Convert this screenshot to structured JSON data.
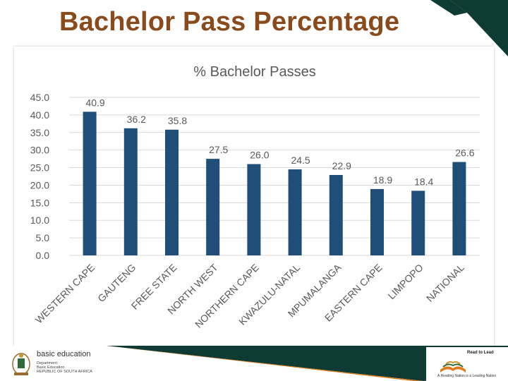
{
  "slide": {
    "title": "Bachelor Pass Percentage"
  },
  "colors": {
    "title": "#8a4a1c",
    "bar": "#1f4e79",
    "grid": "#d9d9d9",
    "axis_text": "#595959",
    "dark_green": "#0e3b33",
    "orange": "#e07b1a"
  },
  "footer": {
    "brand_name": "basic education",
    "brand_lines": [
      "Department:",
      "Basic Education",
      "REPUBLIC OF SOUTH AFRICA"
    ],
    "rtl_title": "Read to Lead",
    "rtl_tagline": "A Reading Nation is a Leading Nation",
    "icons": [
      "coat-of-arms-icon",
      "open-book-icon"
    ]
  },
  "chart_data": {
    "type": "bar",
    "title": "% Bachelor Passes",
    "categories": [
      "WESTERN CAPE",
      "GAUTENG",
      "FREE STATE",
      "NORTH WEST",
      "NORTHERN CAPE",
      "KWAZULU-NATAL",
      "MPUMALANGA",
      "EASTERN CAPE",
      "LIMPOPO",
      "NATIONAL"
    ],
    "values": [
      40.9,
      36.2,
      35.8,
      27.5,
      26.0,
      24.5,
      22.9,
      18.9,
      18.4,
      26.6
    ],
    "value_labels": [
      "40.9",
      "36.2",
      "35.8",
      "27.5",
      "26.0",
      "24.5",
      "22.9",
      "18.9",
      "18.4",
      "26.6"
    ],
    "yticks": [
      "0.0",
      "5.0",
      "10.0",
      "15.0",
      "20.0",
      "25.0",
      "30.0",
      "35.0",
      "40.0",
      "45.0"
    ],
    "ylim": [
      0,
      45
    ],
    "xlabel": "",
    "ylabel": "",
    "grid": true,
    "legend": "none"
  }
}
